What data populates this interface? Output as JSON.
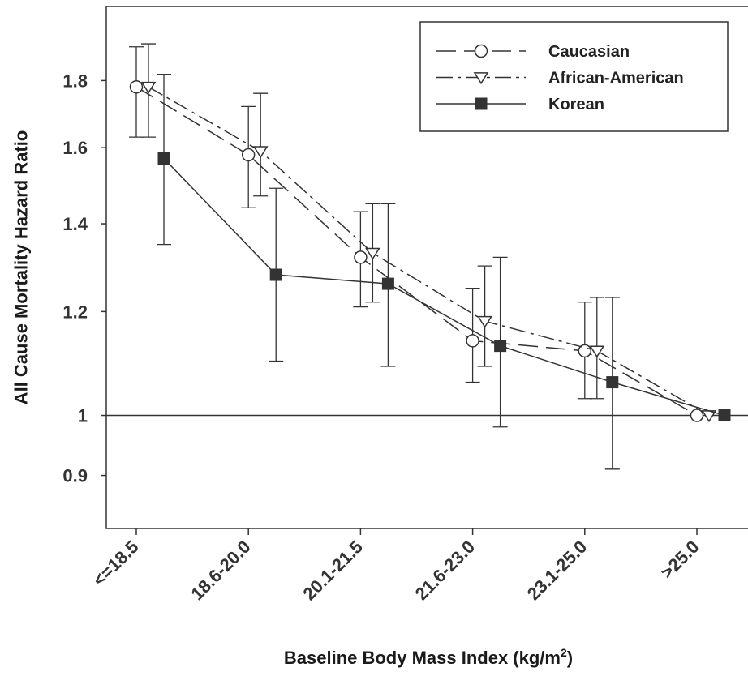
{
  "chart_data": {
    "type": "line",
    "xlabel": "Baseline Body Mass Index (kg/m²)",
    "xlabel_main": "Baseline Body Mass Index (kg/m",
    "xlabel_sup": "2",
    "xlabel_tail": ")",
    "ylabel": "All Cause Mortality Hazard Ratio",
    "categories": [
      "<=18.5",
      "18.6-20.0",
      "20.1-21.5",
      "21.6-23.0",
      "23.1-25.0",
      ">25.0"
    ],
    "y_scale": "log",
    "ylim": [
      0.82,
      2.05
    ],
    "yticks": [
      0.9,
      1,
      1.2,
      1.4,
      1.6,
      1.8
    ],
    "ytick_labels": [
      "0.9",
      "1",
      "1.2",
      "1.4",
      "1.6",
      "1.8"
    ],
    "reference_line": 1,
    "grid": false,
    "legend_position": "top-right",
    "series": [
      {
        "name": "Caucasian",
        "marker": "open-circle",
        "line_style": "dashed",
        "values": [
          1.78,
          1.58,
          1.32,
          1.14,
          1.12,
          1.0
        ],
        "ci_low": [
          1.63,
          1.44,
          1.21,
          1.06,
          1.03,
          null
        ],
        "ci_high": [
          1.91,
          1.72,
          1.43,
          1.25,
          1.22,
          null
        ]
      },
      {
        "name": "African-American",
        "marker": "open-triangle-down",
        "line_style": "dash-dot",
        "values": [
          1.78,
          1.59,
          1.33,
          1.18,
          1.12,
          1.0
        ],
        "ci_low": [
          1.63,
          1.47,
          1.22,
          1.09,
          1.03,
          null
        ],
        "ci_high": [
          1.92,
          1.76,
          1.45,
          1.3,
          1.23,
          null
        ]
      },
      {
        "name": "Korean",
        "marker": "filled-square",
        "line_style": "solid",
        "values": [
          1.57,
          1.28,
          1.26,
          1.13,
          1.06,
          1.0
        ],
        "ci_low": [
          1.35,
          1.1,
          1.09,
          0.98,
          0.91,
          null
        ],
        "ci_high": [
          1.82,
          1.49,
          1.45,
          1.32,
          1.23,
          null
        ]
      }
    ]
  }
}
